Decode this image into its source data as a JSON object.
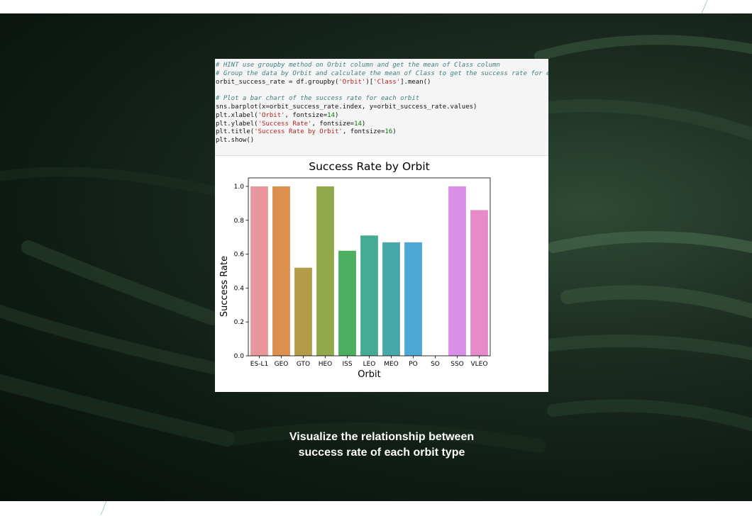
{
  "code": {
    "lines": [
      [
        {
          "t": "# HINT use groupby method on Orbit column and get the mean of Class column",
          "c": "cm"
        }
      ],
      [
        {
          "t": "# Group the data by Orbit and calculate the mean of Class to get the success rate for each orbit",
          "c": "cm"
        }
      ],
      [
        {
          "t": "orbit_success_rate = df.groupby(",
          "c": ""
        },
        {
          "t": "'Orbit'",
          "c": "st"
        },
        {
          "t": ")[",
          "c": ""
        },
        {
          "t": "'Class'",
          "c": "st"
        },
        {
          "t": "].mean()",
          "c": ""
        }
      ],
      [
        {
          "t": "",
          "c": ""
        }
      ],
      [
        {
          "t": "# Plot a bar chart of the success rate for each orbit",
          "c": "cm"
        }
      ],
      [
        {
          "t": "sns.barplot(x=orbit_success_rate.index, y=orbit_success_rate.values)",
          "c": ""
        }
      ],
      [
        {
          "t": "plt.xlabel(",
          "c": ""
        },
        {
          "t": "'Orbit'",
          "c": "st"
        },
        {
          "t": ", fontsize=",
          "c": ""
        },
        {
          "t": "14",
          "c": "nm"
        },
        {
          "t": ")",
          "c": ""
        }
      ],
      [
        {
          "t": "plt.ylabel(",
          "c": ""
        },
        {
          "t": "'Success Rate'",
          "c": "st"
        },
        {
          "t": ", fontsize=",
          "c": ""
        },
        {
          "t": "14",
          "c": "nm"
        },
        {
          "t": ")",
          "c": ""
        }
      ],
      [
        {
          "t": "plt.title(",
          "c": ""
        },
        {
          "t": "'Success Rate by Orbit'",
          "c": "st"
        },
        {
          "t": ", fontsize=",
          "c": ""
        },
        {
          "t": "16",
          "c": "nm"
        },
        {
          "t": ")",
          "c": ""
        }
      ],
      [
        {
          "t": "plt.show()",
          "c": ""
        }
      ]
    ]
  },
  "chart_data": {
    "type": "bar",
    "title": "Success Rate by Orbit",
    "xlabel": "Orbit",
    "ylabel": "Success Rate",
    "categories": [
      "ES-L1",
      "GEO",
      "GTO",
      "HEO",
      "ISS",
      "LEO",
      "MEO",
      "PO",
      "SO",
      "SSO",
      "VLEO"
    ],
    "values": [
      1.0,
      1.0,
      0.52,
      1.0,
      0.62,
      0.71,
      0.67,
      0.67,
      0.0,
      1.0,
      0.86
    ],
    "colors": [
      "#ea969d",
      "#dd8f4e",
      "#b29c4a",
      "#93a84b",
      "#4aaf5e",
      "#45ac93",
      "#48a8a8",
      "#4da8d6",
      "#a99ae4",
      "#da90e6",
      "#e78bc8"
    ],
    "ylim": [
      0,
      1.05
    ],
    "yticks": [
      0.0,
      0.2,
      0.4,
      0.6,
      0.8,
      1.0
    ],
    "ytick_labels": [
      "0.0",
      "0.2",
      "0.4",
      "0.6",
      "0.8",
      "1.0"
    ],
    "grid": false
  },
  "caption": {
    "line1": "Visualize the relationship between",
    "line2": "success rate of each orbit type"
  }
}
